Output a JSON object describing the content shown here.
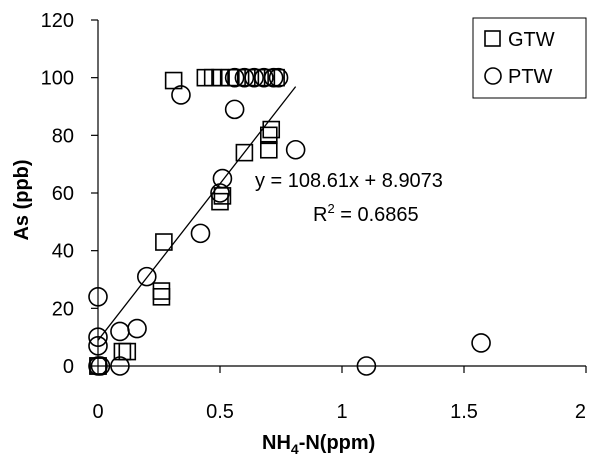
{
  "chart_data": {
    "type": "scatter",
    "xlabel_main": "NH",
    "xlabel_sub": "4",
    "xlabel_rest": "-N(ppm)",
    "ylabel": "As (ppb)",
    "xlim": [
      0,
      2
    ],
    "ylim": [
      0,
      120
    ],
    "x_ticks": [
      0,
      0.5,
      1,
      1.5,
      2
    ],
    "x_tick_labels": [
      "0",
      "0.5",
      "1",
      "1.5",
      "2"
    ],
    "y_ticks": [
      0,
      20,
      40,
      60,
      80,
      100,
      120
    ],
    "y_tick_labels": [
      "0",
      "20",
      "40",
      "60",
      "80",
      "100",
      "120"
    ],
    "grid": false,
    "legend_position": "top-right",
    "series": [
      {
        "name": "GTW",
        "marker": "square",
        "points": [
          {
            "x": 0.0,
            "y": 0
          },
          {
            "x": 0.0,
            "y": 0
          },
          {
            "x": 0.1,
            "y": 5
          },
          {
            "x": 0.12,
            "y": 5
          },
          {
            "x": 0.26,
            "y": 24
          },
          {
            "x": 0.26,
            "y": 26
          },
          {
            "x": 0.27,
            "y": 43
          },
          {
            "x": 0.31,
            "y": 99
          },
          {
            "x": 0.44,
            "y": 100
          },
          {
            "x": 0.47,
            "y": 100
          },
          {
            "x": 0.5,
            "y": 100
          },
          {
            "x": 0.5,
            "y": 57
          },
          {
            "x": 0.51,
            "y": 59
          },
          {
            "x": 0.54,
            "y": 100
          },
          {
            "x": 0.57,
            "y": 100
          },
          {
            "x": 0.6,
            "y": 74
          },
          {
            "x": 0.61,
            "y": 100
          },
          {
            "x": 0.65,
            "y": 100
          },
          {
            "x": 0.69,
            "y": 100
          },
          {
            "x": 0.7,
            "y": 75
          },
          {
            "x": 0.7,
            "y": 80
          },
          {
            "x": 0.71,
            "y": 82
          },
          {
            "x": 0.73,
            "y": 100
          }
        ]
      },
      {
        "name": "PTW",
        "marker": "circle",
        "points": [
          {
            "x": 0.0,
            "y": 24
          },
          {
            "x": 0.0,
            "y": 10
          },
          {
            "x": 0.0,
            "y": 7
          },
          {
            "x": 0.0,
            "y": 0
          },
          {
            "x": 0.01,
            "y": 0
          },
          {
            "x": 0.09,
            "y": 12
          },
          {
            "x": 0.09,
            "y": 0
          },
          {
            "x": 0.16,
            "y": 13
          },
          {
            "x": 0.2,
            "y": 31
          },
          {
            "x": 0.34,
            "y": 94
          },
          {
            "x": 0.42,
            "y": 46
          },
          {
            "x": 0.5,
            "y": 60
          },
          {
            "x": 0.51,
            "y": 65
          },
          {
            "x": 0.56,
            "y": 89
          },
          {
            "x": 0.56,
            "y": 100
          },
          {
            "x": 0.6,
            "y": 100
          },
          {
            "x": 0.64,
            "y": 100
          },
          {
            "x": 0.68,
            "y": 100
          },
          {
            "x": 0.72,
            "y": 100
          },
          {
            "x": 0.74,
            "y": 100
          },
          {
            "x": 0.81,
            "y": 75
          },
          {
            "x": 1.1,
            "y": 0
          },
          {
            "x": 1.57,
            "y": 8
          }
        ]
      }
    ],
    "trendline": {
      "slope": 108.61,
      "intercept": 8.9073,
      "x_range": [
        0.0,
        0.81
      ],
      "equation": "y = 108.61x + 8.9073",
      "r2_main": "R",
      "r2_sup": "2",
      "r2_rest": " = 0.6865"
    }
  }
}
